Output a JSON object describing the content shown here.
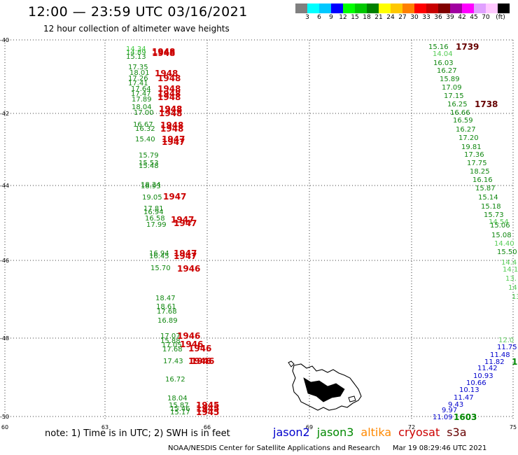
{
  "header": {
    "title": "12:00 — 23:59 UTC 03/16/2021",
    "subtitle": "12 hour collection of altimeter wave heights"
  },
  "colorbar": {
    "colors": [
      "#808080",
      "#00ffff",
      "#00c8ff",
      "#0000ff",
      "#00ff00",
      "#00c800",
      "#008000",
      "#ffff00",
      "#ffc800",
      "#ff8000",
      "#ff0000",
      "#c80000",
      "#800000",
      "#a000a0",
      "#ff00ff",
      "#e0a0ff",
      "#ffc8ff",
      "#000000"
    ],
    "labels": [
      "3",
      "6",
      "9",
      "12",
      "15",
      "18",
      "21",
      "24",
      "27",
      "30",
      "33",
      "36",
      "39",
      "42",
      "45",
      "70",
      "(ft)"
    ]
  },
  "axes": {
    "y_labels": [
      "-40",
      "-42",
      "-44",
      "-46",
      "-48",
      "-50"
    ],
    "x_labels": [
      "60",
      "63",
      "66",
      "69",
      "72",
      "75"
    ]
  },
  "colors": {
    "jason2": "#0000cc",
    "jason3": "#008800",
    "altika": "#ff8800",
    "cryosat": "#cc0000",
    "s3a": "#660000"
  },
  "tracks": {
    "jason3_left": [
      {
        "v": "14.34",
        "c": "#44cc44"
      },
      {
        "v": "14.89",
        "c": "#22aa22"
      },
      {
        "v": "15.13",
        "c": "#118811"
      },
      {
        "v": "17.35",
        "c": "#118811"
      },
      {
        "v": "18.01",
        "c": "#118811"
      },
      {
        "v": "17.26",
        "c": "#118811"
      },
      {
        "v": "17.41",
        "c": "#118811"
      },
      {
        "v": "17.64",
        "c": "#118811"
      },
      {
        "v": "17.47",
        "c": "#118811"
      },
      {
        "v": "17.89",
        "c": "#118811"
      },
      {
        "v": "18.04",
        "c": "#118811"
      },
      {
        "v": "17.00",
        "c": "#118811"
      },
      {
        "v": "16.67",
        "c": "#118811"
      },
      {
        "v": "16.32",
        "c": "#118811"
      },
      {
        "v": "15.40",
        "c": "#118811"
      },
      {
        "v": "15.79",
        "c": "#118811"
      },
      {
        "v": "15.53",
        "c": "#118811"
      },
      {
        "v": "15.48",
        "c": "#118811"
      },
      {
        "v": "18.34",
        "c": "#118811"
      },
      {
        "v": "18.93",
        "c": "#118811"
      },
      {
        "v": "19.05",
        "c": "#118811"
      },
      {
        "v": "17.81",
        "c": "#118811"
      },
      {
        "v": "16.94",
        "c": "#118811"
      },
      {
        "v": "16.58",
        "c": "#118811"
      },
      {
        "v": "17.99",
        "c": "#118811"
      },
      {
        "v": "16.94",
        "c": "#118811"
      },
      {
        "v": "16.45",
        "c": "#118811"
      },
      {
        "v": "15.70",
        "c": "#118811"
      },
      {
        "v": "18.47",
        "c": "#118811"
      },
      {
        "v": "18.61",
        "c": "#118811"
      },
      {
        "v": "17.68",
        "c": "#118811"
      },
      {
        "v": "16.89",
        "c": "#118811"
      },
      {
        "v": "17.07",
        "c": "#118811"
      },
      {
        "v": "15.88",
        "c": "#118811"
      },
      {
        "v": "17.05",
        "c": "#118811"
      },
      {
        "v": "17.68",
        "c": "#118811"
      },
      {
        "v": "17.43",
        "c": "#118811"
      },
      {
        "v": "16.72",
        "c": "#118811"
      },
      {
        "v": "18.04",
        "c": "#118811"
      },
      {
        "v": "15.87",
        "c": "#118811"
      },
      {
        "v": "15.46",
        "c": "#118811"
      },
      {
        "v": "15.17",
        "c": "#118811"
      }
    ],
    "cryosat_left": [
      "1948",
      "1948",
      "1948",
      "1948",
      "1948",
      "1948",
      "1948",
      "1948",
      "1948",
      "1948",
      "1948",
      "1948",
      "1947",
      "1947",
      "1947",
      "1947",
      "1947",
      "1947",
      "1947",
      "1946",
      "1946",
      "1946",
      "1946",
      "1946",
      "1946",
      "1945",
      "1945",
      "1945"
    ],
    "right_track": [
      {
        "v": "15.16",
        "c": "#118811"
      },
      {
        "v": "14.04",
        "c": "#55cc55"
      },
      {
        "v": "16.03",
        "c": "#118811"
      },
      {
        "v": "16.27",
        "c": "#118811"
      },
      {
        "v": "15.89",
        "c": "#118811"
      },
      {
        "v": "17.09",
        "c": "#118811"
      },
      {
        "v": "17.15",
        "c": "#118811"
      },
      {
        "v": "16.25",
        "c": "#118811"
      },
      {
        "v": "16.66",
        "c": "#118811"
      },
      {
        "v": "16.59",
        "c": "#118811"
      },
      {
        "v": "16.27",
        "c": "#118811"
      },
      {
        "v": "17.20",
        "c": "#118811"
      },
      {
        "v": "19.81",
        "c": "#118811"
      },
      {
        "v": "17.36",
        "c": "#118811"
      },
      {
        "v": "17.75",
        "c": "#118811"
      },
      {
        "v": "18.25",
        "c": "#118811"
      },
      {
        "v": "16.16",
        "c": "#118811"
      },
      {
        "v": "15.87",
        "c": "#118811"
      },
      {
        "v": "15.14",
        "c": "#118811"
      },
      {
        "v": "15.18",
        "c": "#118811"
      },
      {
        "v": "15.73",
        "c": "#118811"
      },
      {
        "v": "14.54",
        "c": "#55cc55"
      },
      {
        "v": "15.06",
        "c": "#118811"
      },
      {
        "v": "15.08",
        "c": "#118811"
      },
      {
        "v": "14.40",
        "c": "#55cc55"
      },
      {
        "v": "15.50",
        "c": "#118811"
      },
      {
        "v": "14.4",
        "c": "#55cc55"
      },
      {
        "v": "14.1",
        "c": "#55cc55"
      },
      {
        "v": "13.",
        "c": "#55cc55"
      },
      {
        "v": "14",
        "c": "#55cc55"
      },
      {
        "v": "13",
        "c": "#55cc55"
      }
    ],
    "s3a_right": [
      "1739",
      "1738"
    ],
    "jason2_right": [
      {
        "v": "12.0",
        "c": "#66cc66"
      },
      {
        "v": "11.75",
        "c": "#0000cc"
      },
      {
        "v": "11.48",
        "c": "#0000cc"
      },
      {
        "v": "11.82",
        "c": "#0000cc"
      },
      {
        "v": "11.42",
        "c": "#0000cc"
      },
      {
        "v": "10.93",
        "c": "#0000cc"
      },
      {
        "v": "10.66",
        "c": "#0000cc"
      },
      {
        "v": "10.13",
        "c": "#0000cc"
      },
      {
        "v": "11.47",
        "c": "#0000cc"
      },
      {
        "v": "9.43",
        "c": "#0000cc"
      },
      {
        "v": "9.97",
        "c": "#0000cc"
      },
      {
        "v": "11.09",
        "c": "#0000cc"
      }
    ],
    "jason2_times": [
      "1",
      "1603"
    ]
  },
  "footer": {
    "note": "note: 1) Time is in UTC; 2) SWH is in feet",
    "legend": [
      {
        "label": "jason2",
        "color": "#0000cc"
      },
      {
        "label": "jason3",
        "color": "#008800"
      },
      {
        "label": "altika",
        "color": "#ff8800"
      },
      {
        "label": "cryosat",
        "color": "#cc0000"
      },
      {
        "label": "s3a",
        "color": "#660000"
      }
    ],
    "credit": "NOAA/NESDIS Center for Satellite Applications and Research",
    "timestamp": "Mar 19 08:29:46 UTC 2021"
  }
}
